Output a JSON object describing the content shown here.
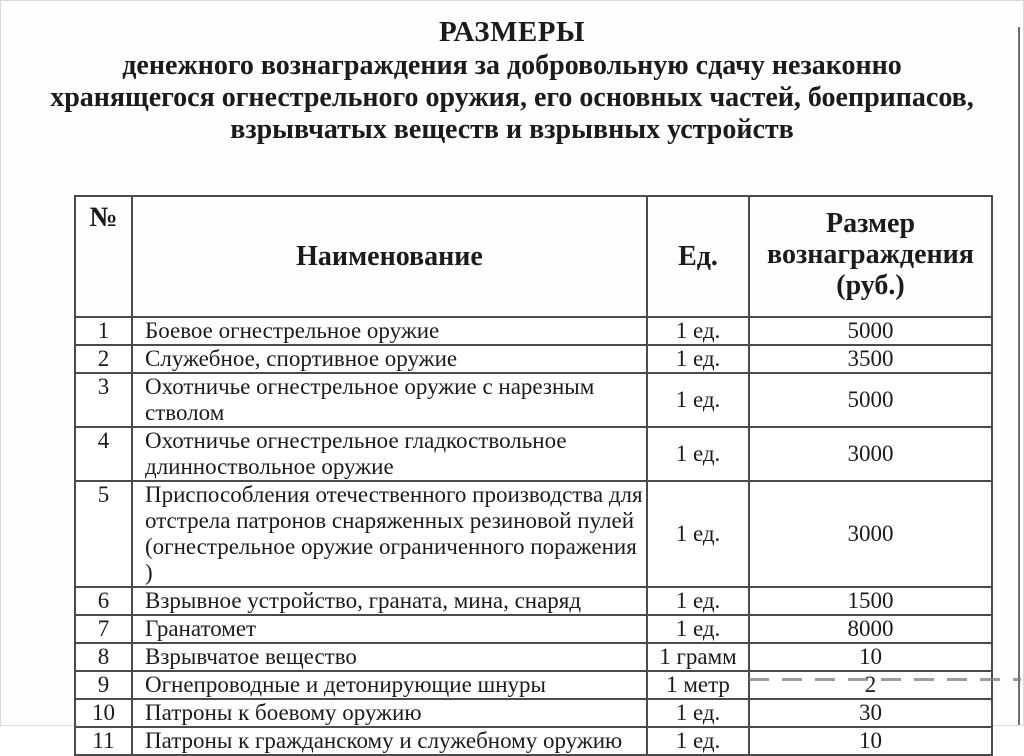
{
  "page": {
    "title": "РАЗМЕРЫ",
    "subtitle_lines": [
      "денежного вознаграждения за добровольную сдачу незаконно",
      "хранящегося огнестрельного оружия, его основных частей, боеприпасов,",
      "взрывчатых веществ и взрывных устройств"
    ]
  },
  "table": {
    "columns": {
      "num": "№",
      "name": "Наименование",
      "unit": "Ед.",
      "amount": "Размер вознаграждения (руб.)"
    },
    "rows": [
      {
        "num": "1",
        "name_lines": [
          "Боевое огнестрельное оружие"
        ],
        "unit": "1 ед.",
        "amount": "5000"
      },
      {
        "num": "2",
        "name_lines": [
          "Служебное, спортивное оружие"
        ],
        "unit": "1 ед.",
        "amount": "3500"
      },
      {
        "num": "3",
        "name_lines": [
          "Охотничье огнестрельное оружие с нарезным",
          "стволом"
        ],
        "unit": "1 ед.",
        "amount": "5000"
      },
      {
        "num": "4",
        "name_lines": [
          "Охотничье огнестрельное гладкоствольное",
          "длинноствольное оружие"
        ],
        "unit": "1 ед.",
        "amount": "3000"
      },
      {
        "num": "5",
        "name_lines": [
          "Приспособления отечественного производства для",
          "отстрела патронов снаряженных резиновой пулей",
          "(огнестрельное оружие ограниченного поражения )"
        ],
        "unit": "1 ед.",
        "amount": "3000"
      },
      {
        "num": "6",
        "name_lines": [
          "Взрывное устройство, граната, мина, снаряд"
        ],
        "unit": "1 ед.",
        "amount": "1500"
      },
      {
        "num": "7",
        "name_lines": [
          "Гранатомет"
        ],
        "unit": "1 ед.",
        "amount": "8000"
      },
      {
        "num": "8",
        "name_lines": [
          "Взрывчатое вещество"
        ],
        "unit": "1 грамм",
        "amount": "10"
      },
      {
        "num": "9",
        "name_lines": [
          "Огнепроводные и детонирующие шнуры"
        ],
        "unit": "1 метр",
        "amount": "2"
      },
      {
        "num": "10",
        "name_lines": [
          "Патроны к боевому оружию"
        ],
        "unit": "1 ед.",
        "amount": "30"
      },
      {
        "num": "11",
        "name_lines": [
          "Патроны к гражданскому и служебному оружию"
        ],
        "unit": "1 ед.",
        "amount": "10"
      }
    ]
  },
  "colors": {
    "text": "#1b1b1b",
    "table_border": "#4b4b4b",
    "page_background": "#ffffff",
    "scan_edge": "#6f6f6f"
  }
}
